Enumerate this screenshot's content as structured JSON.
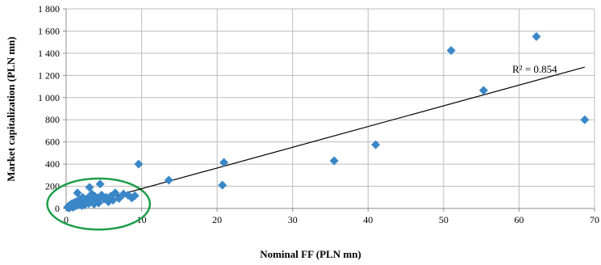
{
  "chart_data": {
    "type": "scatter",
    "xlabel": "Nominal FF (PLN mn)",
    "ylabel": "Market capitalization (PLN mn)",
    "xlim": [
      0,
      70
    ],
    "ylim": [
      0,
      1800
    ],
    "x_ticks": [
      0,
      10,
      20,
      30,
      40,
      50,
      60,
      70
    ],
    "x_tick_labels": [
      "0",
      "10",
      "20",
      "30",
      "40",
      "50",
      "60",
      "70"
    ],
    "y_ticks": [
      0,
      200,
      400,
      600,
      800,
      1000,
      1200,
      1400,
      1600,
      1800
    ],
    "y_tick_labels": [
      "0",
      "200",
      "400",
      "600",
      "800",
      "1 000",
      "1 200",
      "1 400",
      "1 600",
      "1 800"
    ],
    "grid": {
      "vertical": true,
      "horizontal": true
    },
    "marker_color": "#3a87c8",
    "points": [
      {
        "x": 0.2,
        "y": 10
      },
      {
        "x": 0.3,
        "y": 20
      },
      {
        "x": 0.4,
        "y": 5
      },
      {
        "x": 0.5,
        "y": 30
      },
      {
        "x": 0.6,
        "y": 15
      },
      {
        "x": 0.7,
        "y": 40
      },
      {
        "x": 0.8,
        "y": 25
      },
      {
        "x": 0.9,
        "y": 10
      },
      {
        "x": 1.0,
        "y": 50
      },
      {
        "x": 1.1,
        "y": 35
      },
      {
        "x": 1.2,
        "y": 20
      },
      {
        "x": 1.3,
        "y": 60
      },
      {
        "x": 1.4,
        "y": 45
      },
      {
        "x": 1.5,
        "y": 140
      },
      {
        "x": 1.6,
        "y": 30
      },
      {
        "x": 1.7,
        "y": 55
      },
      {
        "x": 1.8,
        "y": 80
      },
      {
        "x": 1.9,
        "y": 40
      },
      {
        "x": 2.0,
        "y": 65
      },
      {
        "x": 2.1,
        "y": 25
      },
      {
        "x": 2.2,
        "y": 100
      },
      {
        "x": 2.3,
        "y": 50
      },
      {
        "x": 2.5,
        "y": 35
      },
      {
        "x": 2.6,
        "y": 70
      },
      {
        "x": 2.8,
        "y": 90
      },
      {
        "x": 3.0,
        "y": 45
      },
      {
        "x": 3.1,
        "y": 190
      },
      {
        "x": 3.2,
        "y": 60
      },
      {
        "x": 3.4,
        "y": 130
      },
      {
        "x": 3.5,
        "y": 80
      },
      {
        "x": 3.7,
        "y": 40
      },
      {
        "x": 3.8,
        "y": 110
      },
      {
        "x": 4.0,
        "y": 70
      },
      {
        "x": 4.2,
        "y": 95
      },
      {
        "x": 4.3,
        "y": 50
      },
      {
        "x": 4.5,
        "y": 220
      },
      {
        "x": 4.7,
        "y": 120
      },
      {
        "x": 5.0,
        "y": 85
      },
      {
        "x": 5.3,
        "y": 100
      },
      {
        "x": 5.6,
        "y": 60
      },
      {
        "x": 5.9,
        "y": 110
      },
      {
        "x": 6.2,
        "y": 75
      },
      {
        "x": 6.5,
        "y": 140
      },
      {
        "x": 7.0,
        "y": 90
      },
      {
        "x": 7.6,
        "y": 130
      },
      {
        "x": 8.2,
        "y": 120
      },
      {
        "x": 8.7,
        "y": 95
      },
      {
        "x": 9.1,
        "y": 115
      },
      {
        "x": 9.6,
        "y": 400
      },
      {
        "x": 13.6,
        "y": 255
      },
      {
        "x": 20.7,
        "y": 210
      },
      {
        "x": 20.9,
        "y": 415
      },
      {
        "x": 35.5,
        "y": 430
      },
      {
        "x": 41.0,
        "y": 575
      },
      {
        "x": 51.0,
        "y": 1425
      },
      {
        "x": 55.3,
        "y": 1065
      },
      {
        "x": 62.3,
        "y": 1550
      },
      {
        "x": 68.7,
        "y": 800
      }
    ],
    "trendline": {
      "type": "linear",
      "from": {
        "x": 0.2,
        "y": -5
      },
      "to": {
        "x": 68.7,
        "y": 1275
      },
      "color": "#000000"
    },
    "annotations": [
      {
        "text": "R² = 0.854"
      }
    ],
    "highlight_ellipse": {
      "center": {
        "x": 4.3,
        "y": 40
      },
      "radius_x": 6.8,
      "radius_y": 230,
      "color": "#1e9e4a"
    }
  }
}
